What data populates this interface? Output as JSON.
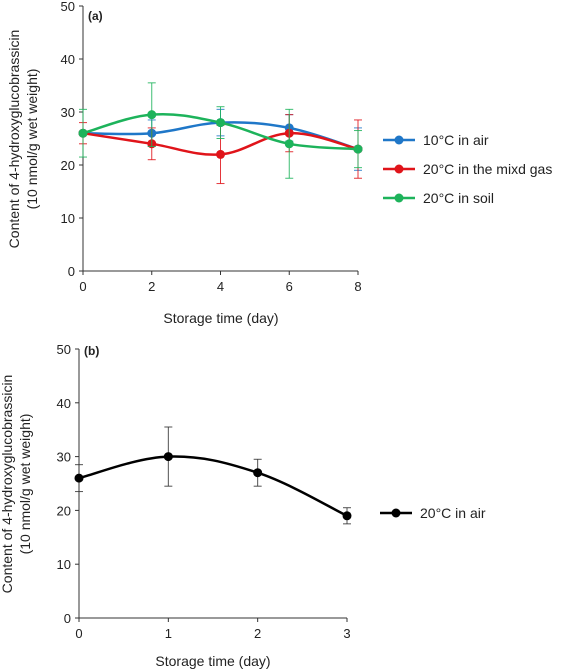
{
  "chart_data": [
    {
      "type": "line",
      "panel_label": "(a)",
      "xlabel": "Storage time (day)",
      "ylabel_line1": "Content of 4-hydroxyglucobrassicin",
      "ylabel_line2": "(10 nmol/g wet weight)",
      "xlim": [
        0,
        8
      ],
      "ylim": [
        0,
        50
      ],
      "x_ticks": [
        0,
        2,
        4,
        6,
        8
      ],
      "y_ticks": [
        0,
        10,
        20,
        30,
        40,
        50
      ],
      "grid": false,
      "legend_position": "right",
      "smooth": true,
      "x": [
        0,
        2,
        4,
        6,
        8
      ],
      "series": [
        {
          "name": "10°C in air",
          "color": "#1f77c8",
          "values": [
            26,
            26,
            28,
            27,
            23
          ],
          "errors": [
            0,
            2.5,
            2.5,
            2.5,
            4
          ]
        },
        {
          "name": "20°C in the mixd gas",
          "color": "#e0141a",
          "values": [
            26,
            24,
            22,
            26,
            23
          ],
          "errors": [
            2,
            3,
            5.5,
            3.5,
            5.5
          ]
        },
        {
          "name": "20°C in soil",
          "color": "#1db35b",
          "values": [
            26,
            29.5,
            28,
            24,
            23
          ],
          "errors": [
            4.5,
            6,
            3,
            6.5,
            3.5
          ]
        }
      ]
    },
    {
      "type": "line",
      "panel_label": "(b)",
      "xlabel": "Storage time (day)",
      "ylabel_line1": "Content of 4-hydroxyglucobrassicin",
      "ylabel_line2": "(10 nmol/g wet weight)",
      "xlim": [
        0,
        3
      ],
      "ylim": [
        0,
        50
      ],
      "x_ticks": [
        0,
        1,
        2,
        3
      ],
      "y_ticks": [
        0,
        10,
        20,
        30,
        40,
        50
      ],
      "grid": false,
      "legend_position": "right",
      "smooth": true,
      "x": [
        0,
        1,
        2,
        3
      ],
      "series": [
        {
          "name": "20°C in air",
          "color": "#000000",
          "values": [
            26,
            30,
            27,
            19
          ],
          "errors": [
            2.5,
            5.5,
            2.5,
            1.5
          ]
        }
      ]
    }
  ]
}
